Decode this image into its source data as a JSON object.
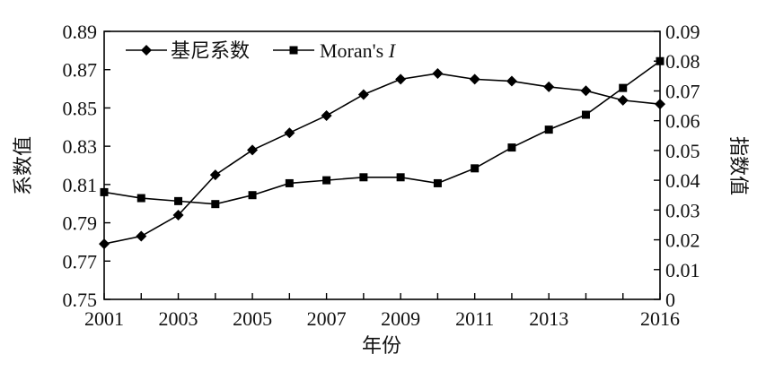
{
  "chart_data": {
    "type": "line",
    "title": "",
    "xlabel": "年份",
    "ylabel_left": "系数值",
    "ylabel_right": "指数值",
    "x": [
      2001,
      2002,
      2003,
      2004,
      2005,
      2006,
      2007,
      2008,
      2009,
      2010,
      2011,
      2012,
      2013,
      2014,
      2015,
      2016
    ],
    "xticks": [
      "2001",
      "2003",
      "2005",
      "2007",
      "2009",
      "2011",
      "2013",
      "2016"
    ],
    "yticks_left": [
      "0.75",
      "0.77",
      "0.79",
      "0.81",
      "0.83",
      "0.85",
      "0.87",
      "0.89"
    ],
    "yticks_right": [
      "0",
      "0.01",
      "0.02",
      "0.03",
      "0.04",
      "0.05",
      "0.06",
      "0.07",
      "0.08",
      "0.09"
    ],
    "ylim_left": [
      0.75,
      0.89
    ],
    "ylim_right": [
      0,
      0.09
    ],
    "xlim": [
      2001,
      2016
    ],
    "grid": false,
    "legend_position": "top-left",
    "series": [
      {
        "name": "基尼系数",
        "axis": "left",
        "marker": "diamond",
        "values": [
          0.779,
          0.783,
          0.794,
          0.815,
          0.828,
          0.837,
          0.846,
          0.857,
          0.865,
          0.868,
          0.865,
          0.864,
          0.861,
          0.859,
          0.854,
          0.852
        ]
      },
      {
        "name": "Moran's I",
        "name_prefix": "Moran's ",
        "name_italic": "I",
        "axis": "right",
        "marker": "square",
        "values": [
          0.036,
          0.034,
          0.033,
          0.032,
          0.035,
          0.039,
          0.04,
          0.041,
          0.041,
          0.039,
          0.044,
          0.051,
          0.057,
          0.062,
          0.071,
          0.08
        ]
      }
    ]
  }
}
